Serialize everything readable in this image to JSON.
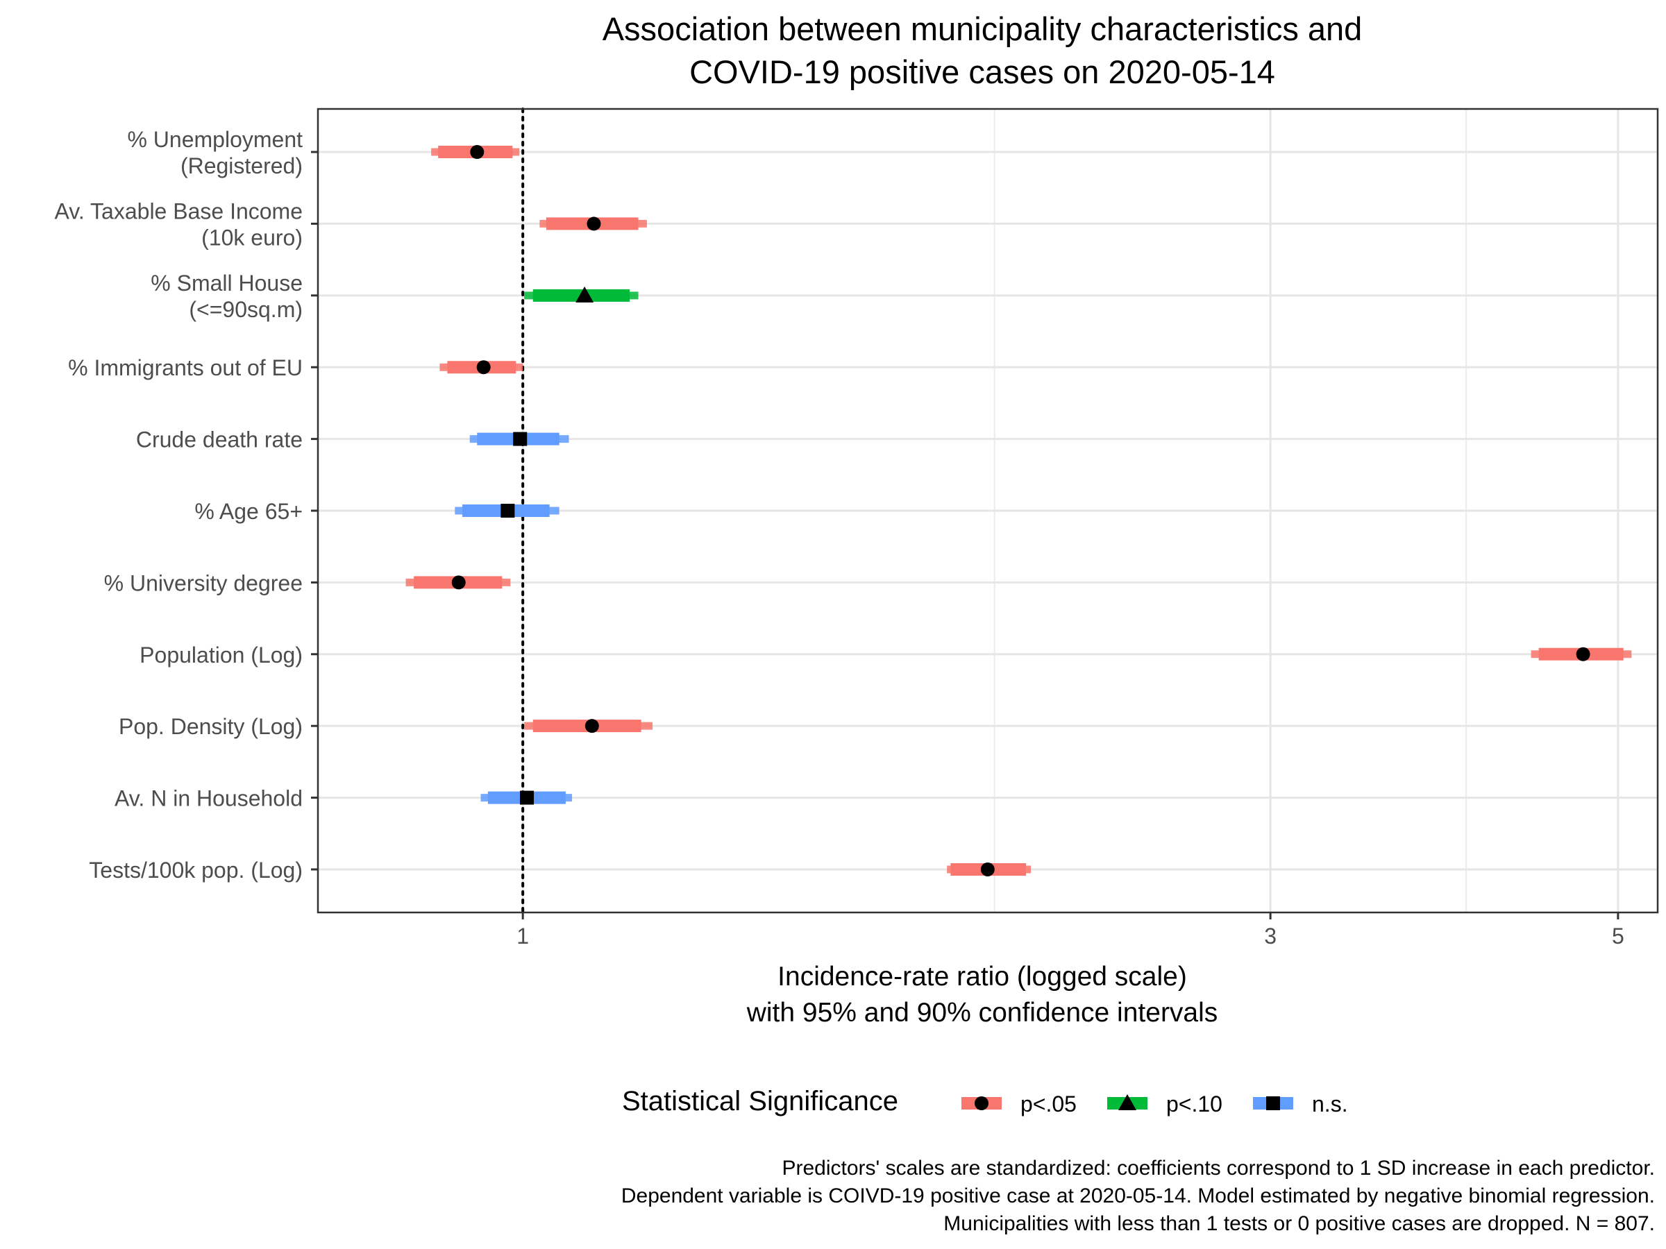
{
  "chart_data": {
    "type": "forest",
    "title_lines": [
      "Association between municipality characteristics and",
      "COVID-19 positive cases on 2020-05-14"
    ],
    "xlabel_lines": [
      "Incidence-rate ratio (logged scale)",
      "with 95% and 90% confidence intervals"
    ],
    "x_scale": "log",
    "xlim": [
      0.74,
      5.3
    ],
    "x_ticks": [
      1,
      3,
      5
    ],
    "x_tick_labels": [
      "1",
      "3",
      "5"
    ],
    "x_minor_grid": [
      2,
      4
    ],
    "reference_line": 1,
    "grid": true,
    "legend": {
      "title": "Statistical Significance",
      "position": "bottom",
      "items": [
        {
          "key": "p05",
          "label": "p<.05",
          "color": "#F8766D",
          "shape": "circle"
        },
        {
          "key": "p10",
          "label": "p<.10",
          "color": "#00BA38",
          "shape": "triangle"
        },
        {
          "key": "ns",
          "label": "n.s.",
          "color": "#619CFF",
          "shape": "square"
        }
      ]
    },
    "predictors": [
      {
        "label_lines": [
          "% Unemployment",
          "(Registered)"
        ],
        "estimate": 0.935,
        "ci95": [
          0.874,
          0.995
        ],
        "ci90": [
          0.883,
          0.985
        ],
        "sig": "p05"
      },
      {
        "label_lines": [
          "Av. Taxable Base Income",
          "(10k euro)"
        ],
        "estimate": 1.11,
        "ci95": [
          1.025,
          1.2
        ],
        "ci90": [
          1.035,
          1.185
        ],
        "sig": "p05"
      },
      {
        "label_lines": [
          "% Small House",
          "(<=90sq.m)"
        ],
        "estimate": 1.095,
        "ci95": [
          1.002,
          1.185
        ],
        "ci90": [
          1.015,
          1.17
        ],
        "sig": "p10"
      },
      {
        "label_lines": [
          "% Immigrants out of EU"
        ],
        "estimate": 0.944,
        "ci95": [
          0.885,
          1.0
        ],
        "ci90": [
          0.895,
          0.99
        ],
        "sig": "p05"
      },
      {
        "label_lines": [
          "Crude death rate"
        ],
        "estimate": 0.996,
        "ci95": [
          0.925,
          1.07
        ],
        "ci90": [
          0.935,
          1.055
        ],
        "sig": "ns"
      },
      {
        "label_lines": [
          "% Age 65+"
        ],
        "estimate": 0.978,
        "ci95": [
          0.905,
          1.055
        ],
        "ci90": [
          0.915,
          1.04
        ],
        "sig": "ns"
      },
      {
        "label_lines": [
          "% University degree"
        ],
        "estimate": 0.91,
        "ci95": [
          0.842,
          0.982
        ],
        "ci90": [
          0.852,
          0.97
        ],
        "sig": "p05"
      },
      {
        "label_lines": [
          "Population (Log)"
        ],
        "estimate": 4.75,
        "ci95": [
          4.4,
          5.1
        ],
        "ci90": [
          4.45,
          5.04
        ],
        "sig": "p05"
      },
      {
        "label_lines": [
          "Pop. Density (Log)"
        ],
        "estimate": 1.107,
        "ci95": [
          1.002,
          1.21
        ],
        "ci90": [
          1.015,
          1.19
        ],
        "sig": "p05"
      },
      {
        "label_lines": [
          "Av. N in Household"
        ],
        "estimate": 1.006,
        "ci95": [
          0.94,
          1.075
        ],
        "ci90": [
          0.95,
          1.065
        ],
        "sig": "ns"
      },
      {
        "label_lines": [
          "Tests/100k pop. (Log)"
        ],
        "estimate": 1.98,
        "ci95": [
          1.865,
          2.11
        ],
        "ci90": [
          1.875,
          2.095
        ],
        "sig": "p05"
      }
    ],
    "caption_lines": [
      "Predictors' scales are standardized: coefficients correspond to 1 SD increase in each predictor.",
      "Dependent variable is COIVD-19 positive case at 2020-05-14. Model estimated by negative binomial regression.",
      "Municipalities with less than 1 tests or 0 positive cases are dropped. N = 807."
    ]
  }
}
